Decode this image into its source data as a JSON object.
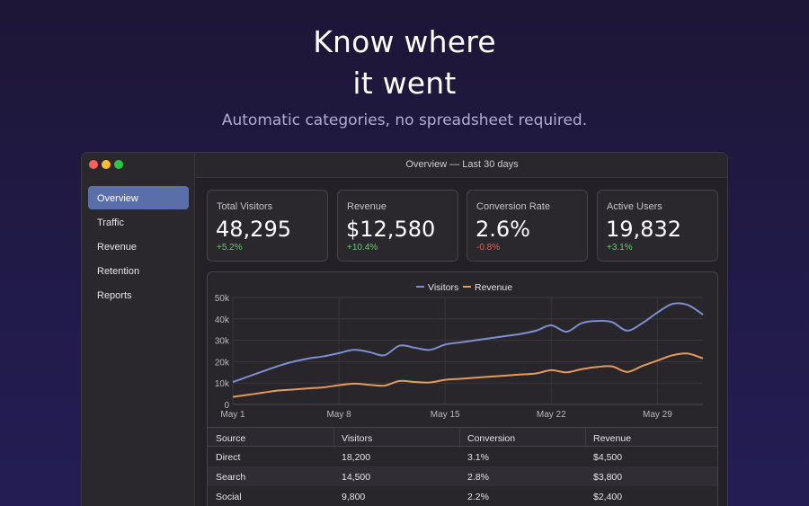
{
  "hero": {
    "title_line1": "Know where",
    "title_line2": "it went",
    "subtitle": "Automatic categories, no spreadsheet required."
  },
  "window": {
    "title": "Overview — Last 30 days"
  },
  "sidebar": {
    "items": [
      {
        "label": "Overview",
        "active": true
      },
      {
        "label": "Traffic",
        "active": false
      },
      {
        "label": "Revenue",
        "active": false
      },
      {
        "label": "Retention",
        "active": false
      },
      {
        "label": "Reports",
        "active": false
      }
    ]
  },
  "stats": [
    {
      "label": "Total Visitors",
      "value": "48,295",
      "delta": "+5.2%",
      "trend": "up"
    },
    {
      "label": "Revenue",
      "value": "$12,580",
      "delta": "+10.4%",
      "trend": "up"
    },
    {
      "label": "Conversion Rate",
      "value": "2.6%",
      "delta": "-0.8%",
      "trend": "down"
    },
    {
      "label": "Active Users",
      "value": "19,832",
      "delta": "+3.1%",
      "trend": "up"
    }
  ],
  "colors": {
    "visitors": "#7c8fd0",
    "revenue": "#e59a5c",
    "positive": "#5fcf6f",
    "negative": "#ef5a55",
    "accent": "#5a6ea9"
  },
  "chart_data": {
    "type": "line",
    "x": [
      "May 1",
      "May 2",
      "May 3",
      "May 4",
      "May 5",
      "May 6",
      "May 7",
      "May 8",
      "May 9",
      "May 10",
      "May 11",
      "May 12",
      "May 13",
      "May 14",
      "May 15",
      "May 16",
      "May 17",
      "May 18",
      "May 19",
      "May 20",
      "May 21",
      "May 22",
      "May 23",
      "May 24",
      "May 25",
      "May 26",
      "May 27",
      "May 28",
      "May 29",
      "May 30",
      "May 31",
      "Jun 1"
    ],
    "x_tick_labels": [
      "May 1",
      "May 8",
      "May 15",
      "May 22",
      "May 29"
    ],
    "y_tick_labels": [
      "0",
      "10k",
      "20k",
      "30k",
      "40k",
      "50k"
    ],
    "ylim": [
      0,
      50000
    ],
    "legend_position": "top-center",
    "grid": true,
    "series": [
      {
        "name": "Visitors",
        "values": [
          10500,
          13000,
          15500,
          18000,
          20000,
          21500,
          22500,
          24000,
          25500,
          24500,
          23000,
          27500,
          26500,
          25500,
          28000,
          29000,
          30000,
          31000,
          32000,
          33000,
          34500,
          37000,
          34000,
          38000,
          39000,
          38500,
          34500,
          38000,
          43000,
          47000,
          46500,
          42000
        ]
      },
      {
        "name": "Revenue",
        "values": [
          3500,
          4500,
          5500,
          6500,
          7000,
          7500,
          8000,
          9000,
          9700,
          9200,
          8800,
          11000,
          10500,
          10300,
          11500,
          12000,
          12500,
          13000,
          13500,
          14000,
          14500,
          16000,
          15000,
          16500,
          17500,
          17800,
          15200,
          18000,
          20500,
          23000,
          23800,
          21500
        ]
      }
    ]
  },
  "table": {
    "headers": [
      "Source",
      "Visitors",
      "Conversion",
      "Revenue"
    ],
    "rows": [
      [
        "Direct",
        "18,200",
        "3.1%",
        "$4,500"
      ],
      [
        "Search",
        "14,500",
        "2.8%",
        "$3,800"
      ],
      [
        "Social",
        "9,800",
        "2.2%",
        "$2,400"
      ]
    ]
  }
}
